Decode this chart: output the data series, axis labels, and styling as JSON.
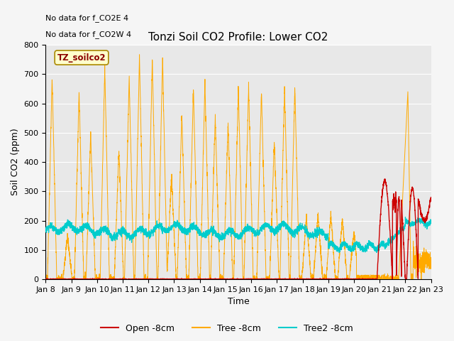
{
  "title": "Tonzi Soil CO2 Profile: Lower CO2",
  "xlabel": "Time",
  "ylabel": "Soil CO2 (ppm)",
  "ylim": [
    0,
    800
  ],
  "annotation1": "No data for f_CO2E 4",
  "annotation2": "No data for f_CO2W 4",
  "legend_box_label": "TZ_soilco2",
  "legend_entries": [
    "Open -8cm",
    "Tree -8cm",
    "Tree2 -8cm"
  ],
  "legend_colors": [
    "#cc0000",
    "#ffaa00",
    "#00cccc"
  ],
  "plot_bg": "#e8e8e8",
  "fig_bg": "#f5f5f5",
  "xtick_labels": [
    "Jan 8",
    "Jan 9",
    "Jan 10",
    "Jan 11",
    "Jan 12",
    "Jan 13",
    "Jan 14",
    "Jan 15",
    "Jan 16",
    "Jan 17",
    "Jan 18",
    "Jan 19",
    "Jan 20",
    "Jan 21",
    "Jan 22",
    "Jan 23"
  ],
  "xmin": 0.0,
  "xmax": 15.0,
  "yticks": [
    0,
    100,
    200,
    300,
    400,
    500,
    600,
    700,
    800
  ]
}
